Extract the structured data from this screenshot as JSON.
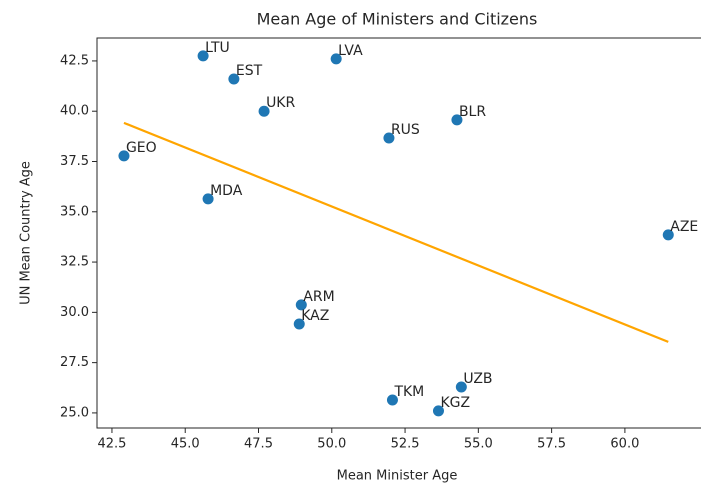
{
  "chart_data": {
    "type": "scatter",
    "title": "Mean Age of Ministers and Citizens",
    "x_label": "Mean Minister Age",
    "y_label": "UN Mean Country Age",
    "labels": [
      "LTU",
      "EST",
      "LVA",
      "UKR",
      "BLR",
      "RUS",
      "GEO",
      "MDA",
      "AZE",
      "ARM",
      "KAZ",
      "UZB",
      "TKM",
      "KGZ"
    ],
    "x": [
      45.61,
      46.66,
      50.15,
      47.69,
      54.27,
      51.95,
      42.91,
      45.78,
      61.48,
      48.96,
      48.89,
      54.42,
      52.07,
      53.64
    ],
    "y": [
      42.75,
      41.6,
      42.6,
      40.0,
      39.57,
      38.67,
      37.78,
      35.64,
      33.85,
      30.37,
      29.42,
      26.29,
      25.64,
      25.1
    ],
    "color": "#1f77b4",
    "fit_line": {
      "x": [
        42.91,
        61.48
      ],
      "y": [
        39.42,
        28.53
      ],
      "color": "#ffa500"
    },
    "xlim": [
      41.99,
      62.46
    ],
    "ylim": [
      24.25,
      43.64
    ],
    "xticks": [
      42.5,
      {
        "value": 45,
        "label": "45.0"
      },
      47.5,
      {
        "value": 50,
        "label": "50.0"
      },
      52.5,
      {
        "value": 55,
        "label": "55.0"
      },
      57.5,
      {
        "value": 60,
        "label": "60.0"
      }
    ],
    "yticks": [
      {
        "value": 25,
        "label": "25.0"
      },
      27.5,
      {
        "value": 30,
        "label": "30.0"
      },
      32.5,
      {
        "value": 35,
        "label": "35.0"
      },
      37.5,
      {
        "value": 40,
        "label": "40.0"
      },
      42.5
    ],
    "grid": false
  }
}
